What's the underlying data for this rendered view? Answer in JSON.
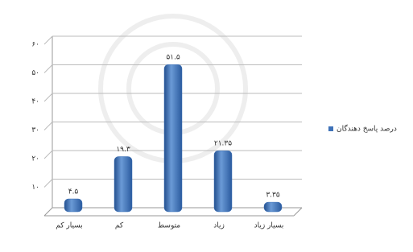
{
  "chart_data": {
    "type": "bar",
    "categories": [
      "بسیار کم",
      "کم",
      "متوسط",
      "زیاد",
      "بسیار زیاد"
    ],
    "series": [
      {
        "name": "درصد پاسخ دهندگان",
        "color": "#3f72b8",
        "values": [
          4.5,
          19.3,
          51.5,
          21.35,
          3.35
        ],
        "value_labels": [
          "۴.۵",
          "۱۹.۳",
          "۵۱.۵",
          "۲۱.۳۵",
          "۳.۳۵"
        ]
      }
    ],
    "ylim": [
      0,
      60
    ],
    "yticks": [
      {
        "value": 10,
        "label": "۱۰"
      },
      {
        "value": 20,
        "label": "۲۰"
      },
      {
        "value": 30,
        "label": "۳۰"
      },
      {
        "value": 40,
        "label": "۴۰"
      },
      {
        "value": 50,
        "label": "۵۰"
      },
      {
        "value": 60,
        "label": "۶۰"
      }
    ],
    "grid": true,
    "legend": "right"
  }
}
